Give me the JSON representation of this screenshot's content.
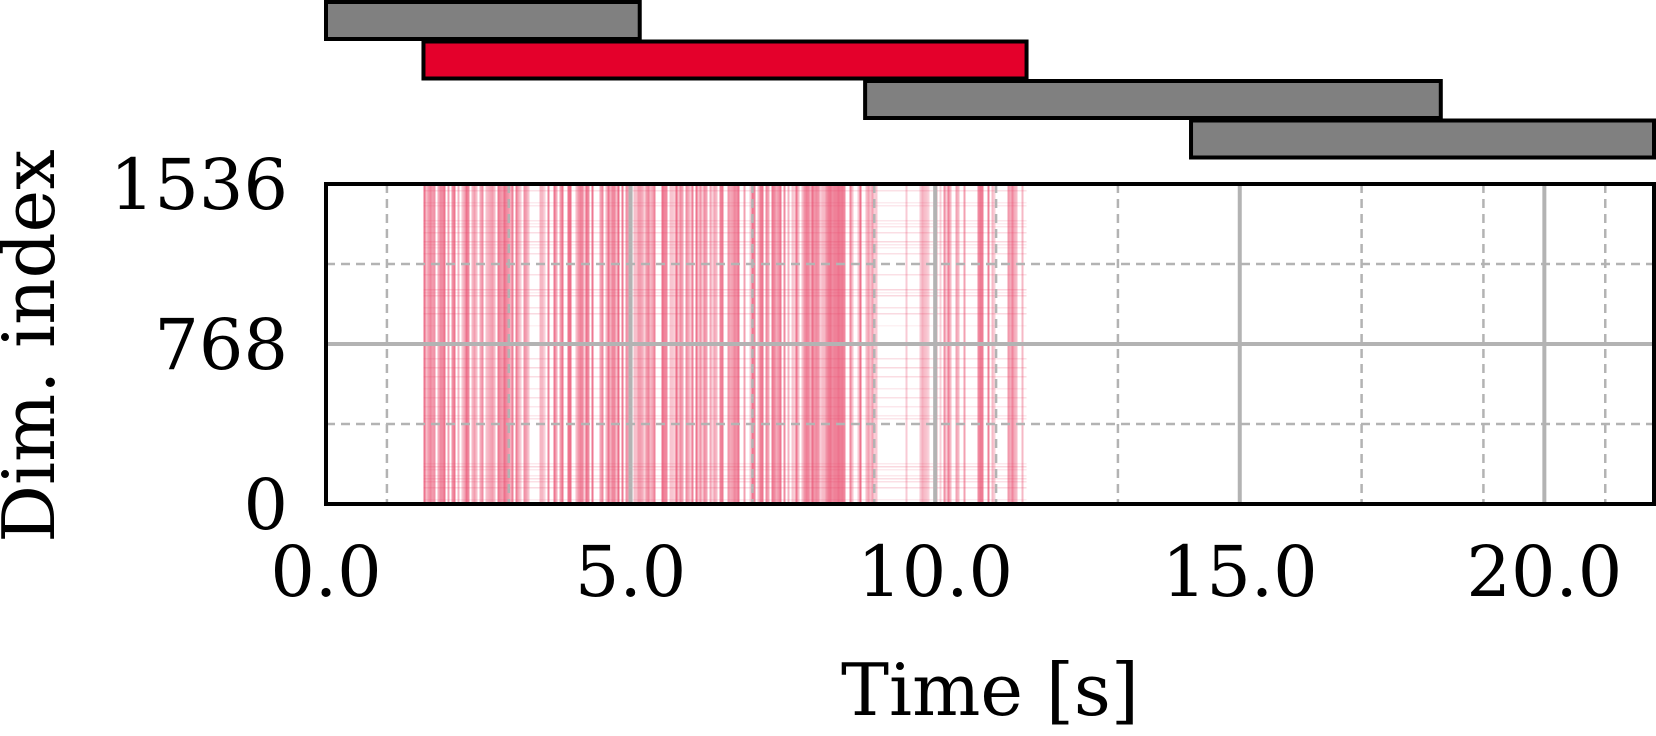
{
  "chart_data": {
    "type": "heatmap",
    "title": "",
    "xlabel": "Time [s]",
    "ylabel": "Dim. index",
    "xlim": [
      0.0,
      21.8
    ],
    "ylim": [
      0,
      1536
    ],
    "xticks": [
      0.0,
      5.0,
      10.0,
      15.0,
      20.0
    ],
    "xtick_labels": [
      "0.0",
      "5.0",
      "10.0",
      "15.0",
      "20.0"
    ],
    "yticks": [
      0,
      768,
      1536
    ],
    "ytick_labels": [
      "0",
      "768",
      "1536"
    ],
    "grid": {
      "major": true,
      "minor": true,
      "minor_style": "dashed"
    },
    "windows": [
      {
        "start": 0.0,
        "end": 5.15,
        "highlight": false
      },
      {
        "start": 1.6,
        "end": 11.5,
        "highlight": true
      },
      {
        "start": 8.85,
        "end": 18.3,
        "highlight": false
      },
      {
        "start": 14.2,
        "end": 21.8,
        "highlight": false
      }
    ],
    "activation_band": {
      "start": 1.6,
      "end": 11.5
    },
    "colors": {
      "window": "#808080",
      "window_highlight": "#e4002b",
      "activation": "#e8486a",
      "grid": "#b3b3b3"
    }
  }
}
